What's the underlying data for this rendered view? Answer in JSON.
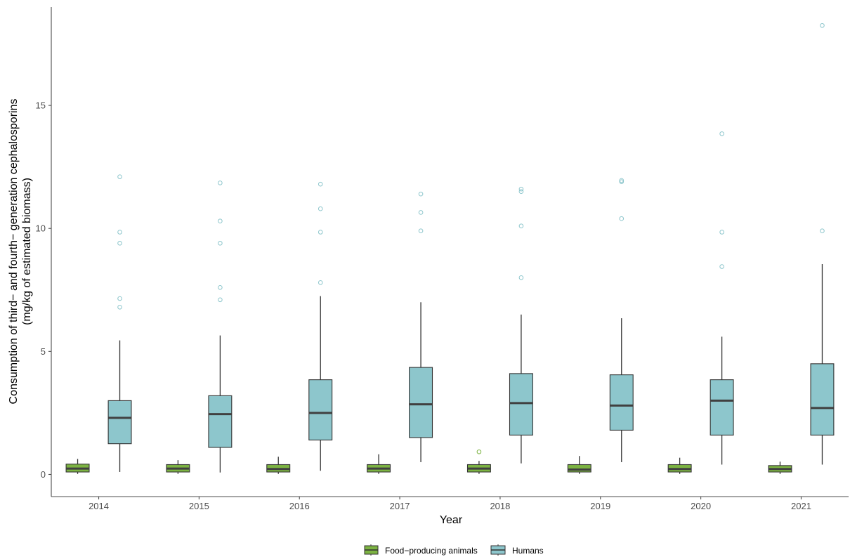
{
  "chart_data": {
    "type": "boxplot",
    "xlabel": "Year",
    "ylabel_line1": "Consumption of third− and fourth− generation cephalosporins",
    "ylabel_line2": "(mg/kg of estimated biomass)",
    "categories": [
      "2014",
      "2015",
      "2016",
      "2017",
      "2018",
      "2019",
      "2020",
      "2021"
    ],
    "ylim": [
      -0.9,
      19.0
    ],
    "yticks": [
      0,
      5,
      10,
      15
    ],
    "grid": false,
    "legend_position": "bottom",
    "series": [
      {
        "name": "Food−producing animals",
        "color": "#7cb342",
        "boxes": [
          {
            "min": 0.02,
            "q1": 0.1,
            "median": 0.24,
            "q3": 0.42,
            "max": 0.63,
            "outliers": []
          },
          {
            "min": 0.02,
            "q1": 0.1,
            "median": 0.24,
            "q3": 0.4,
            "max": 0.58,
            "outliers": []
          },
          {
            "min": 0.02,
            "q1": 0.1,
            "median": 0.22,
            "q3": 0.4,
            "max": 0.72,
            "outliers": []
          },
          {
            "min": 0.02,
            "q1": 0.1,
            "median": 0.24,
            "q3": 0.4,
            "max": 0.82,
            "outliers": []
          },
          {
            "min": 0.02,
            "q1": 0.1,
            "median": 0.24,
            "q3": 0.4,
            "max": 0.55,
            "outliers": [
              0.92
            ]
          },
          {
            "min": 0.02,
            "q1": 0.1,
            "median": 0.2,
            "q3": 0.4,
            "max": 0.75,
            "outliers": []
          },
          {
            "min": 0.02,
            "q1": 0.1,
            "median": 0.22,
            "q3": 0.4,
            "max": 0.68,
            "outliers": []
          },
          {
            "min": 0.02,
            "q1": 0.1,
            "median": 0.22,
            "q3": 0.36,
            "max": 0.52,
            "outliers": []
          }
        ]
      },
      {
        "name": "Humans",
        "color": "#8dc6cc",
        "boxes": [
          {
            "min": 0.1,
            "q1": 1.25,
            "median": 2.3,
            "q3": 3.0,
            "max": 5.45,
            "outliers": [
              6.8,
              7.15,
              9.4,
              9.85,
              12.1
            ]
          },
          {
            "min": 0.08,
            "q1": 1.1,
            "median": 2.45,
            "q3": 3.2,
            "max": 5.65,
            "outliers": [
              7.1,
              7.6,
              9.4,
              10.3,
              11.85
            ]
          },
          {
            "min": 0.15,
            "q1": 1.4,
            "median": 2.5,
            "q3": 3.85,
            "max": 7.25,
            "outliers": [
              7.8,
              9.85,
              10.8,
              11.8
            ]
          },
          {
            "min": 0.5,
            "q1": 1.5,
            "median": 2.85,
            "q3": 4.35,
            "max": 7.0,
            "outliers": [
              9.9,
              10.65,
              11.4
            ]
          },
          {
            "min": 0.45,
            "q1": 1.6,
            "median": 2.9,
            "q3": 4.1,
            "max": 6.5,
            "outliers": [
              8.0,
              10.1,
              11.5,
              11.6
            ]
          },
          {
            "min": 0.5,
            "q1": 1.8,
            "median": 2.8,
            "q3": 4.05,
            "max": 6.35,
            "outliers": [
              10.4,
              11.9,
              11.95
            ]
          },
          {
            "min": 0.4,
            "q1": 1.6,
            "median": 3.0,
            "q3": 3.85,
            "max": 5.6,
            "outliers": [
              8.45,
              9.85,
              13.85
            ]
          },
          {
            "min": 0.4,
            "q1": 1.6,
            "median": 2.7,
            "q3": 4.5,
            "max": 8.55,
            "outliers": [
              9.9,
              18.25
            ]
          }
        ]
      }
    ]
  }
}
